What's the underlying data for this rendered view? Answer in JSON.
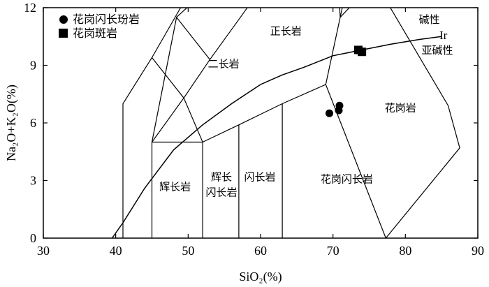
{
  "chart_data": {
    "type": "scatter",
    "xlabel": "SiO₂(%)",
    "ylabel": "Na₂O+K₂O(%)",
    "xlim": [
      30,
      90
    ],
    "ylim": [
      0,
      12
    ],
    "xticks": [
      30,
      40,
      50,
      60,
      70,
      80,
      90
    ],
    "yticks": [
      0,
      3,
      6,
      9,
      12
    ],
    "series": [
      {
        "name": "花岗闪长玢岩",
        "marker": "circle",
        "color": "#000000",
        "points": [
          [
            69.5,
            6.5
          ],
          [
            70.8,
            6.65
          ],
          [
            70.9,
            6.9
          ]
        ]
      },
      {
        "name": "花岗斑岩",
        "marker": "square",
        "color": "#000000",
        "points": [
          [
            73.5,
            9.8
          ],
          [
            74.0,
            9.7
          ]
        ]
      }
    ],
    "boundary_curve": {
      "label": "Ir",
      "points": [
        [
          39.5,
          0
        ],
        [
          41,
          0.8
        ],
        [
          44,
          2.6
        ],
        [
          48,
          4.6
        ],
        [
          52,
          5.9
        ],
        [
          56,
          7.0
        ],
        [
          60,
          8.0
        ],
        [
          63,
          8.5
        ],
        [
          66,
          8.9
        ],
        [
          70,
          9.5
        ],
        [
          74,
          9.8
        ],
        [
          78,
          10.1
        ],
        [
          82,
          10.35
        ],
        [
          85,
          10.5
        ]
      ]
    },
    "field_lines": [
      [
        [
          41,
          0
        ],
        [
          41,
          7
        ],
        [
          45,
          9.4
        ],
        [
          52,
          14
        ]
      ],
      [
        [
          45,
          0
        ],
        [
          45,
          5
        ],
        [
          52,
          5
        ],
        [
          52,
          0
        ]
      ],
      [
        [
          45,
          5
        ],
        [
          49.4,
          7.3
        ],
        [
          52,
          5
        ],
        [
          57,
          5.9
        ],
        [
          63,
          7
        ],
        [
          69,
          8
        ],
        [
          77.3,
          0
        ]
      ],
      [
        [
          57,
          0
        ],
        [
          57,
          5.9
        ]
      ],
      [
        [
          63,
          0
        ],
        [
          63,
          7
        ]
      ],
      [
        [
          45,
          9.4
        ],
        [
          49.4,
          7.3
        ],
        [
          53,
          9.3
        ],
        [
          57.6,
          11.7
        ],
        [
          61,
          13.5
        ]
      ],
      [
        [
          53,
          9.3
        ],
        [
          48.4,
          11.5
        ],
        [
          45,
          5
        ]
      ],
      [
        [
          48.4,
          11.5
        ],
        [
          57,
          14.5
        ]
      ],
      [
        [
          69,
          8
        ],
        [
          71,
          11.5
        ],
        [
          72.7,
          14.5
        ]
      ],
      [
        [
          71,
          11.5
        ],
        [
          70.6,
          14
        ]
      ],
      [
        [
          71,
          11.5
        ],
        [
          77.3,
          14
        ]
      ],
      [
        [
          77.3,
          0
        ],
        [
          87.5,
          4.7
        ],
        [
          85.9,
          6.9
        ],
        [
          74,
          14.5
        ]
      ]
    ],
    "field_labels": [
      {
        "text": "正长岩",
        "x": 63.5,
        "y": 10.6
      },
      {
        "text": "二长岩",
        "x": 54.9,
        "y": 8.9
      },
      {
        "text": "花岗岩",
        "x": 79.3,
        "y": 6.6
      },
      {
        "text": "辉长岩",
        "x": 48.2,
        "y": 2.5
      },
      {
        "text": "辉长",
        "x": 54.6,
        "y": 3.0
      },
      {
        "text": "闪长岩",
        "x": 54.6,
        "y": 2.2
      },
      {
        "text": "闪长岩",
        "x": 59.9,
        "y": 3.0
      },
      {
        "text": "花岗闪长岩",
        "x": 71.9,
        "y": 2.9
      },
      {
        "text": "碱性",
        "x": 83.3,
        "y": 11.2
      },
      {
        "text": "亚碱性",
        "x": 84.4,
        "y": 9.6
      }
    ]
  }
}
